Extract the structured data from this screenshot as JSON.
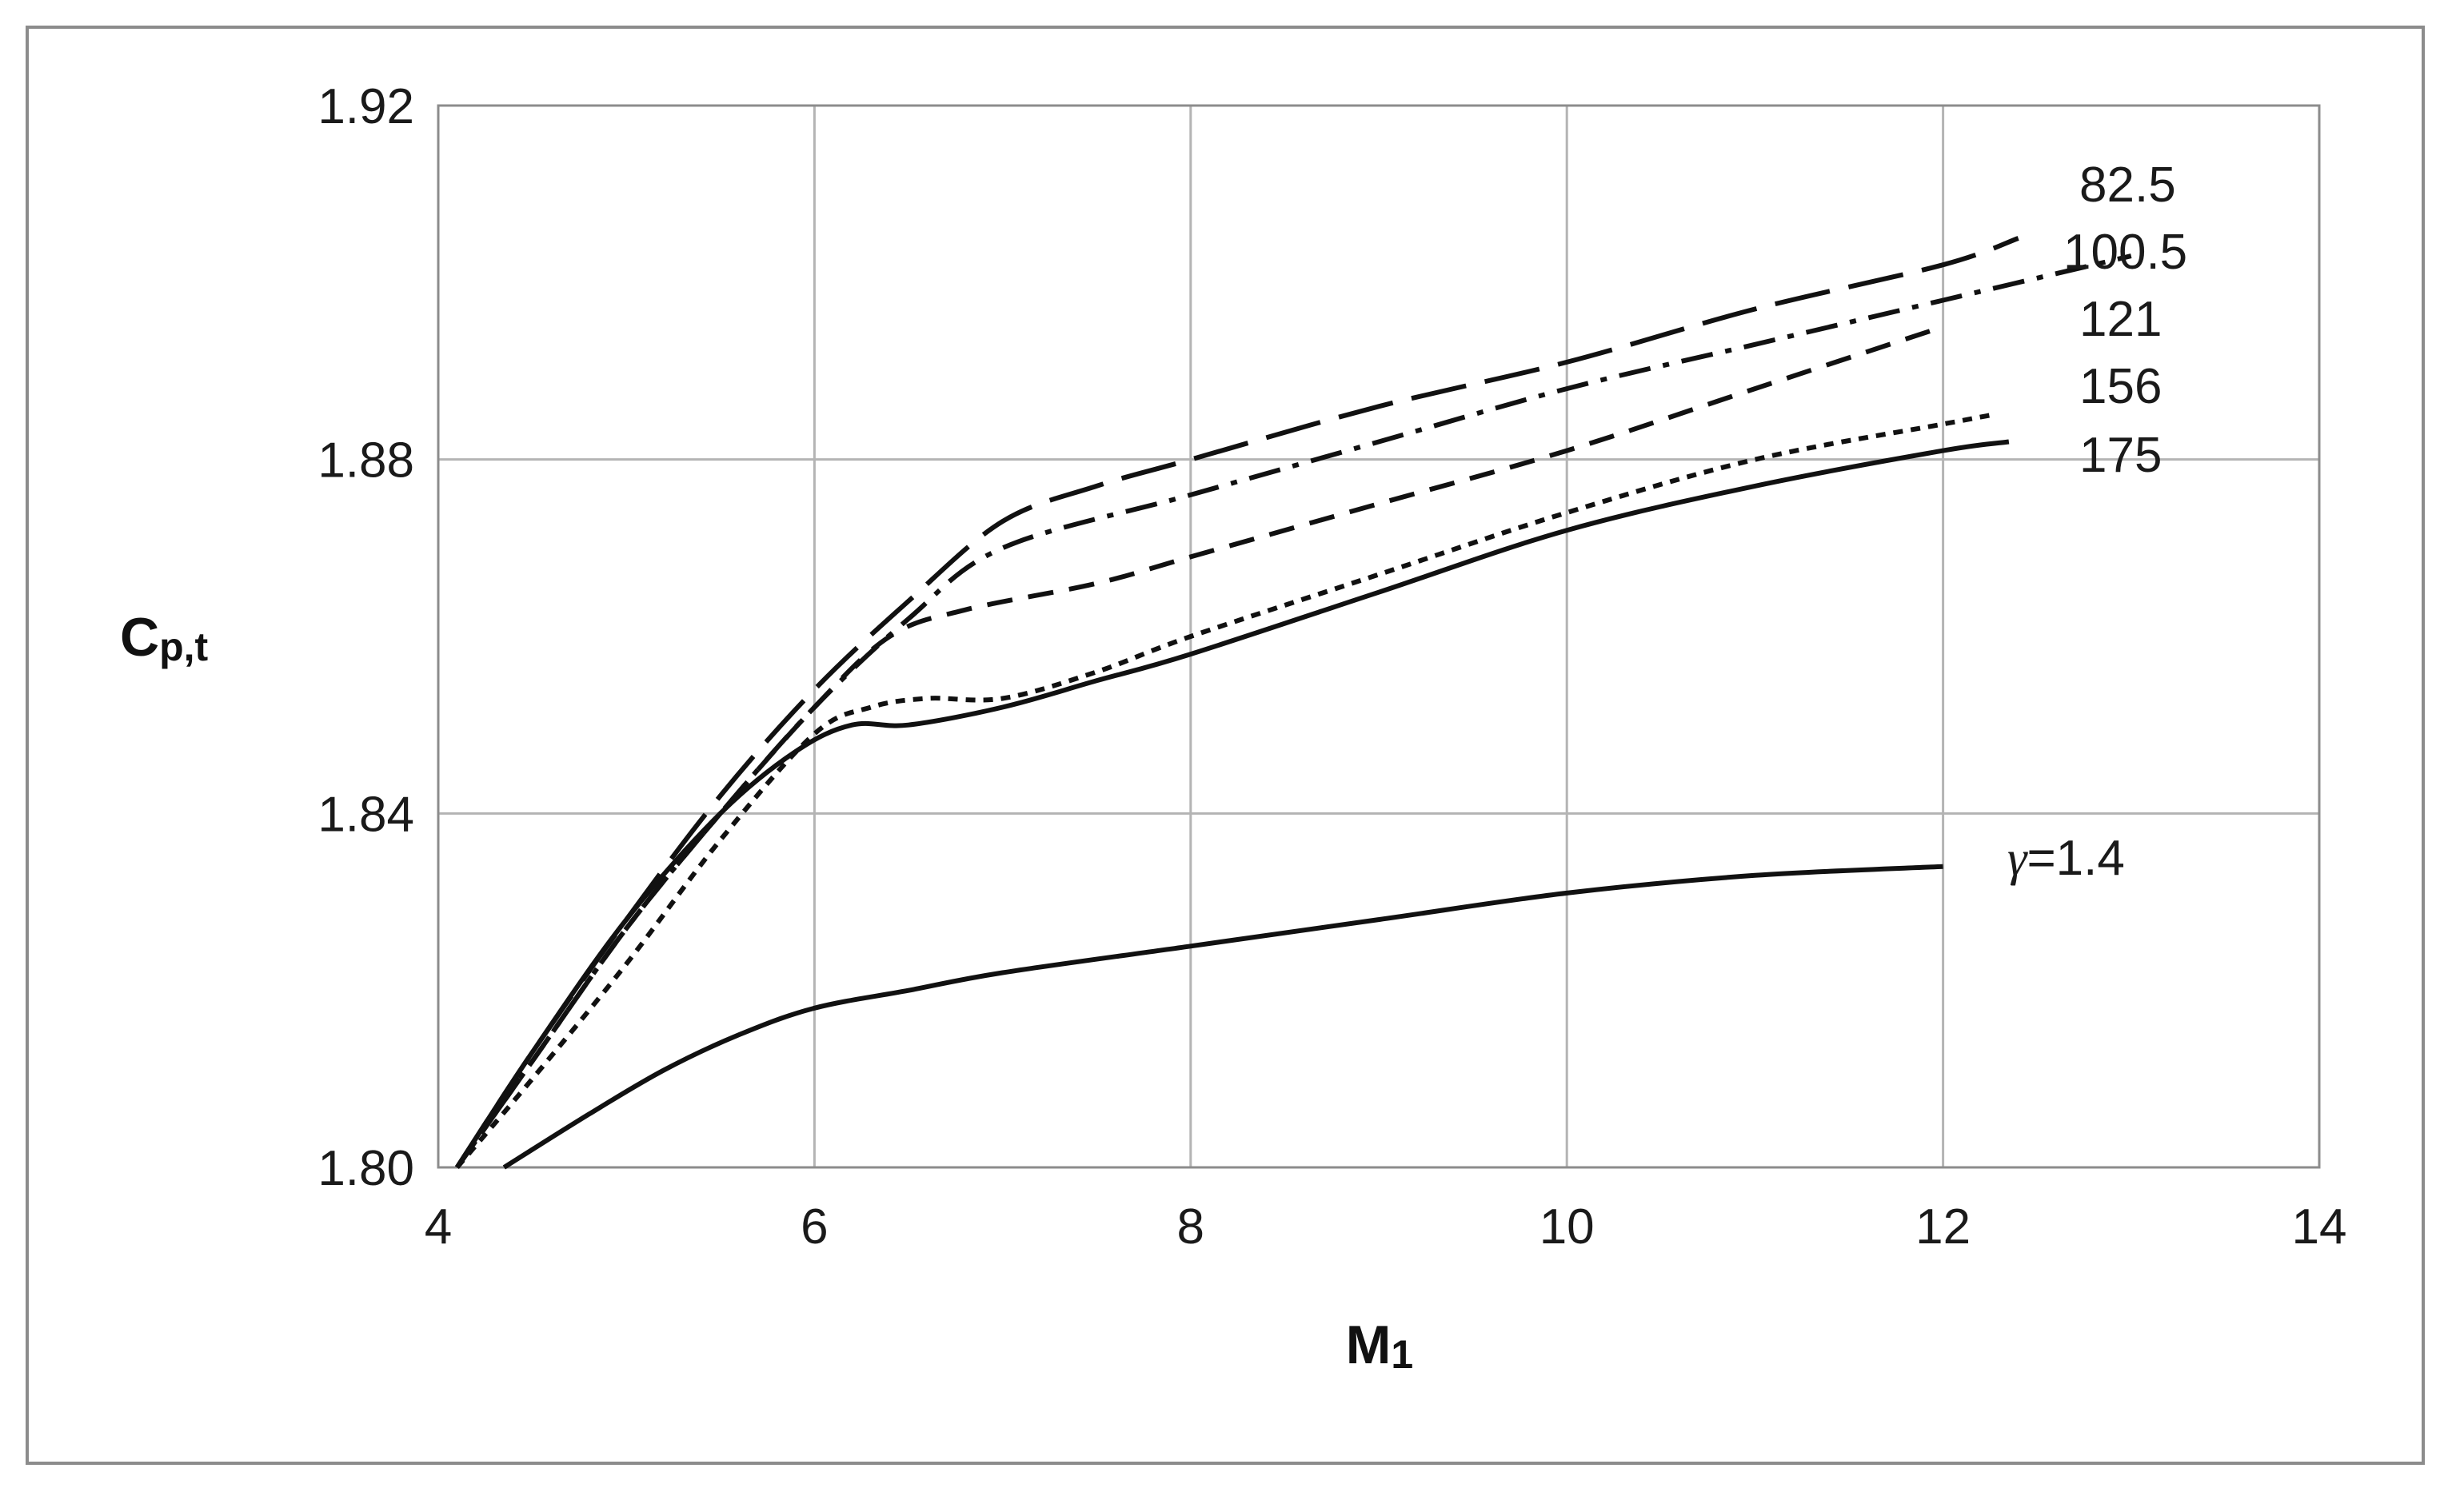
{
  "chart_data": {
    "type": "line",
    "xlabel": {
      "main": "M",
      "sub": "1"
    },
    "ylabel": {
      "main": "C",
      "sub": "p,t"
    },
    "xlim": [
      4,
      14
    ],
    "ylim": [
      1.8,
      1.92
    ],
    "x_ticks": [
      "4",
      "6",
      "8",
      "10",
      "12",
      "14"
    ],
    "y_ticks": [
      "1.80",
      "1.84",
      "1.88",
      "1.92"
    ],
    "grid": true,
    "series": [
      {
        "name": "82.5",
        "dash": "long-dash",
        "x": [
          4.1,
          4.5,
          5.0,
          5.5,
          6.0,
          6.5,
          7.0,
          7.5,
          8.0,
          9.0,
          10.0,
          11.0,
          12.0,
          12.4
        ],
        "y": [
          1.8,
          1.813,
          1.828,
          1.842,
          1.854,
          1.864,
          1.873,
          1.877,
          1.88,
          1.886,
          1.891,
          1.897,
          1.902,
          1.905
        ]
      },
      {
        "name": "100.5",
        "dash": "dash-dot",
        "x": [
          4.1,
          4.5,
          5.0,
          5.5,
          6.0,
          6.5,
          7.0,
          8.0,
          9.0,
          10.0,
          11.0,
          12.0,
          13.0
        ],
        "y": [
          1.8,
          1.812,
          1.827,
          1.84,
          1.852,
          1.862,
          1.87,
          1.876,
          1.882,
          1.888,
          1.893,
          1.898,
          1.903
        ]
      },
      {
        "name": "121",
        "dash": "short-dash",
        "x": [
          4.1,
          4.5,
          5.0,
          5.5,
          6.0,
          6.4,
          6.8,
          7.5,
          8.0,
          9.0,
          10.0,
          11.0,
          12.0
        ],
        "y": [
          1.8,
          1.812,
          1.827,
          1.84,
          1.852,
          1.86,
          1.863,
          1.866,
          1.869,
          1.875,
          1.881,
          1.888,
          1.895
        ]
      },
      {
        "name": "156",
        "dash": "dotted",
        "x": [
          4.1,
          4.5,
          5.0,
          5.5,
          6.0,
          6.3,
          6.6,
          7.0,
          7.5,
          8.0,
          9.0,
          10.0,
          11.0,
          12.0,
          12.25
        ],
        "y": [
          1.8,
          1.81,
          1.823,
          1.837,
          1.849,
          1.852,
          1.853,
          1.853,
          1.856,
          1.86,
          1.867,
          1.874,
          1.88,
          1.884,
          1.885
        ]
      },
      {
        "name": "175",
        "dash": "solid",
        "x": [
          4.1,
          4.5,
          5.0,
          5.5,
          5.9,
          6.2,
          6.5,
          7.0,
          7.5,
          8.0,
          9.0,
          10.0,
          11.0,
          12.0,
          12.35
        ],
        "y": [
          1.8,
          1.813,
          1.828,
          1.84,
          1.847,
          1.85,
          1.85,
          1.852,
          1.855,
          1.858,
          1.865,
          1.872,
          1.877,
          1.881,
          1.882
        ]
      },
      {
        "name": "γ=1.4",
        "dash": "solid",
        "x": [
          4.35,
          4.8,
          5.2,
          5.6,
          6.0,
          6.5,
          7.0,
          8.0,
          9.0,
          10.0,
          11.0,
          12.0
        ],
        "y": [
          1.8,
          1.806,
          1.811,
          1.815,
          1.818,
          1.82,
          1.822,
          1.825,
          1.828,
          1.831,
          1.833,
          1.834
        ]
      }
    ]
  }
}
